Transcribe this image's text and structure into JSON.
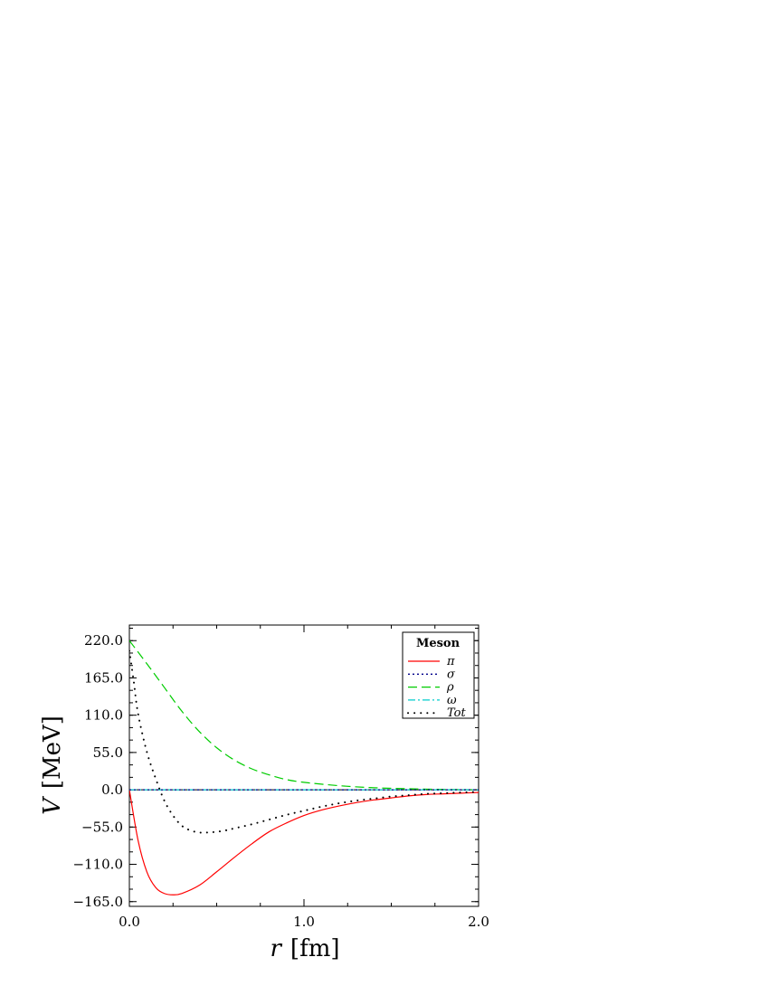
{
  "chart_data": {
    "type": "line",
    "xlabel_var": "r",
    "xlabel_unit": "[fm]",
    "ylabel_var": "V",
    "ylabel_unit": "[MeV]",
    "xlim": [
      0.0,
      2.0
    ],
    "ylim": [
      -172,
      243
    ],
    "x_ticks": [
      "0.0",
      "1.0",
      "2.0"
    ],
    "x_tick_values": [
      0,
      1,
      2
    ],
    "y_ticks": [
      "220.0",
      "165.0",
      "110.0",
      "55.0",
      "0.0",
      "−55.0",
      "−110.0",
      "−165.0"
    ],
    "y_tick_values": [
      220,
      165,
      110,
      55,
      0,
      -55,
      -110,
      -165
    ],
    "legend": {
      "title": "Meson",
      "placement": "top-right",
      "entries": [
        "π",
        "σ",
        "ρ",
        "ω",
        "Tot"
      ]
    },
    "series": [
      {
        "name": "π",
        "color": "#ff0000",
        "style": "solid",
        "x": [
          0,
          0.05,
          0.1,
          0.15,
          0.2,
          0.25,
          0.3,
          0.4,
          0.5,
          0.6,
          0.7,
          0.8,
          0.9,
          1.0,
          1.1,
          1.2,
          1.3,
          1.4,
          1.5,
          1.6,
          1.7,
          1.8,
          1.9,
          2.0
        ],
        "y": [
          0,
          -75,
          -121,
          -144,
          -153,
          -155,
          -153,
          -141,
          -121,
          -100,
          -80,
          -62,
          -49,
          -38,
          -30,
          -24,
          -19,
          -15,
          -12,
          -9,
          -7,
          -6,
          -5,
          -4
        ]
      },
      {
        "name": "σ",
        "color": "#00008b",
        "style": "dotted",
        "x": [
          0,
          2.0
        ],
        "y": [
          0,
          0
        ]
      },
      {
        "name": "ρ",
        "color": "#00cc00",
        "style": "dashed",
        "x": [
          0,
          0.1,
          0.2,
          0.3,
          0.4,
          0.5,
          0.6,
          0.7,
          0.8,
          0.9,
          1.0,
          1.2,
          1.4,
          1.6,
          1.8,
          2.0
        ],
        "y": [
          220,
          186,
          151,
          116,
          86,
          62,
          44,
          31,
          22,
          15,
          11,
          6,
          3,
          1.5,
          0.5,
          0
        ]
      },
      {
        "name": "ω",
        "color": "#00cccc",
        "style": "dashdot",
        "x": [
          0,
          2.0
        ],
        "y": [
          0,
          0
        ]
      },
      {
        "name": "Tot",
        "color": "#000000",
        "style": "sparse-dotted",
        "x": [
          0,
          0.025,
          0.05,
          0.1,
          0.15,
          0.2,
          0.25,
          0.3,
          0.35,
          0.4,
          0.45,
          0.5,
          0.55,
          0.6,
          0.7,
          0.8,
          0.9,
          1.0,
          1.1,
          1.2,
          1.3,
          1.4,
          1.5,
          1.6,
          1.7,
          1.8,
          1.9,
          2.0
        ],
        "y": [
          205,
          160,
          112,
          56,
          17,
          -16,
          -38,
          -53,
          -60,
          -63,
          -63,
          -62,
          -60,
          -57,
          -51,
          -44,
          -37,
          -31,
          -25,
          -20,
          -16,
          -13,
          -10,
          -8,
          -6,
          -5,
          -4,
          -3
        ]
      }
    ]
  }
}
